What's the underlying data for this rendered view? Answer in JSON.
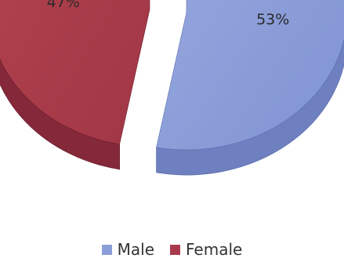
{
  "chart_data": {
    "type": "pie",
    "style": "3d-exploded",
    "categories": [
      "Male",
      "Female"
    ],
    "values": [
      53,
      47
    ],
    "labels": [
      "53%",
      "47%"
    ],
    "colors": {
      "Male": "#8b9ed8",
      "Female": "#a93a4b"
    },
    "legend": {
      "placement": "bottom",
      "items": [
        {
          "name": "Male",
          "color": "#8b9ed8"
        },
        {
          "name": "Female",
          "color": "#a93a4b"
        }
      ]
    }
  }
}
